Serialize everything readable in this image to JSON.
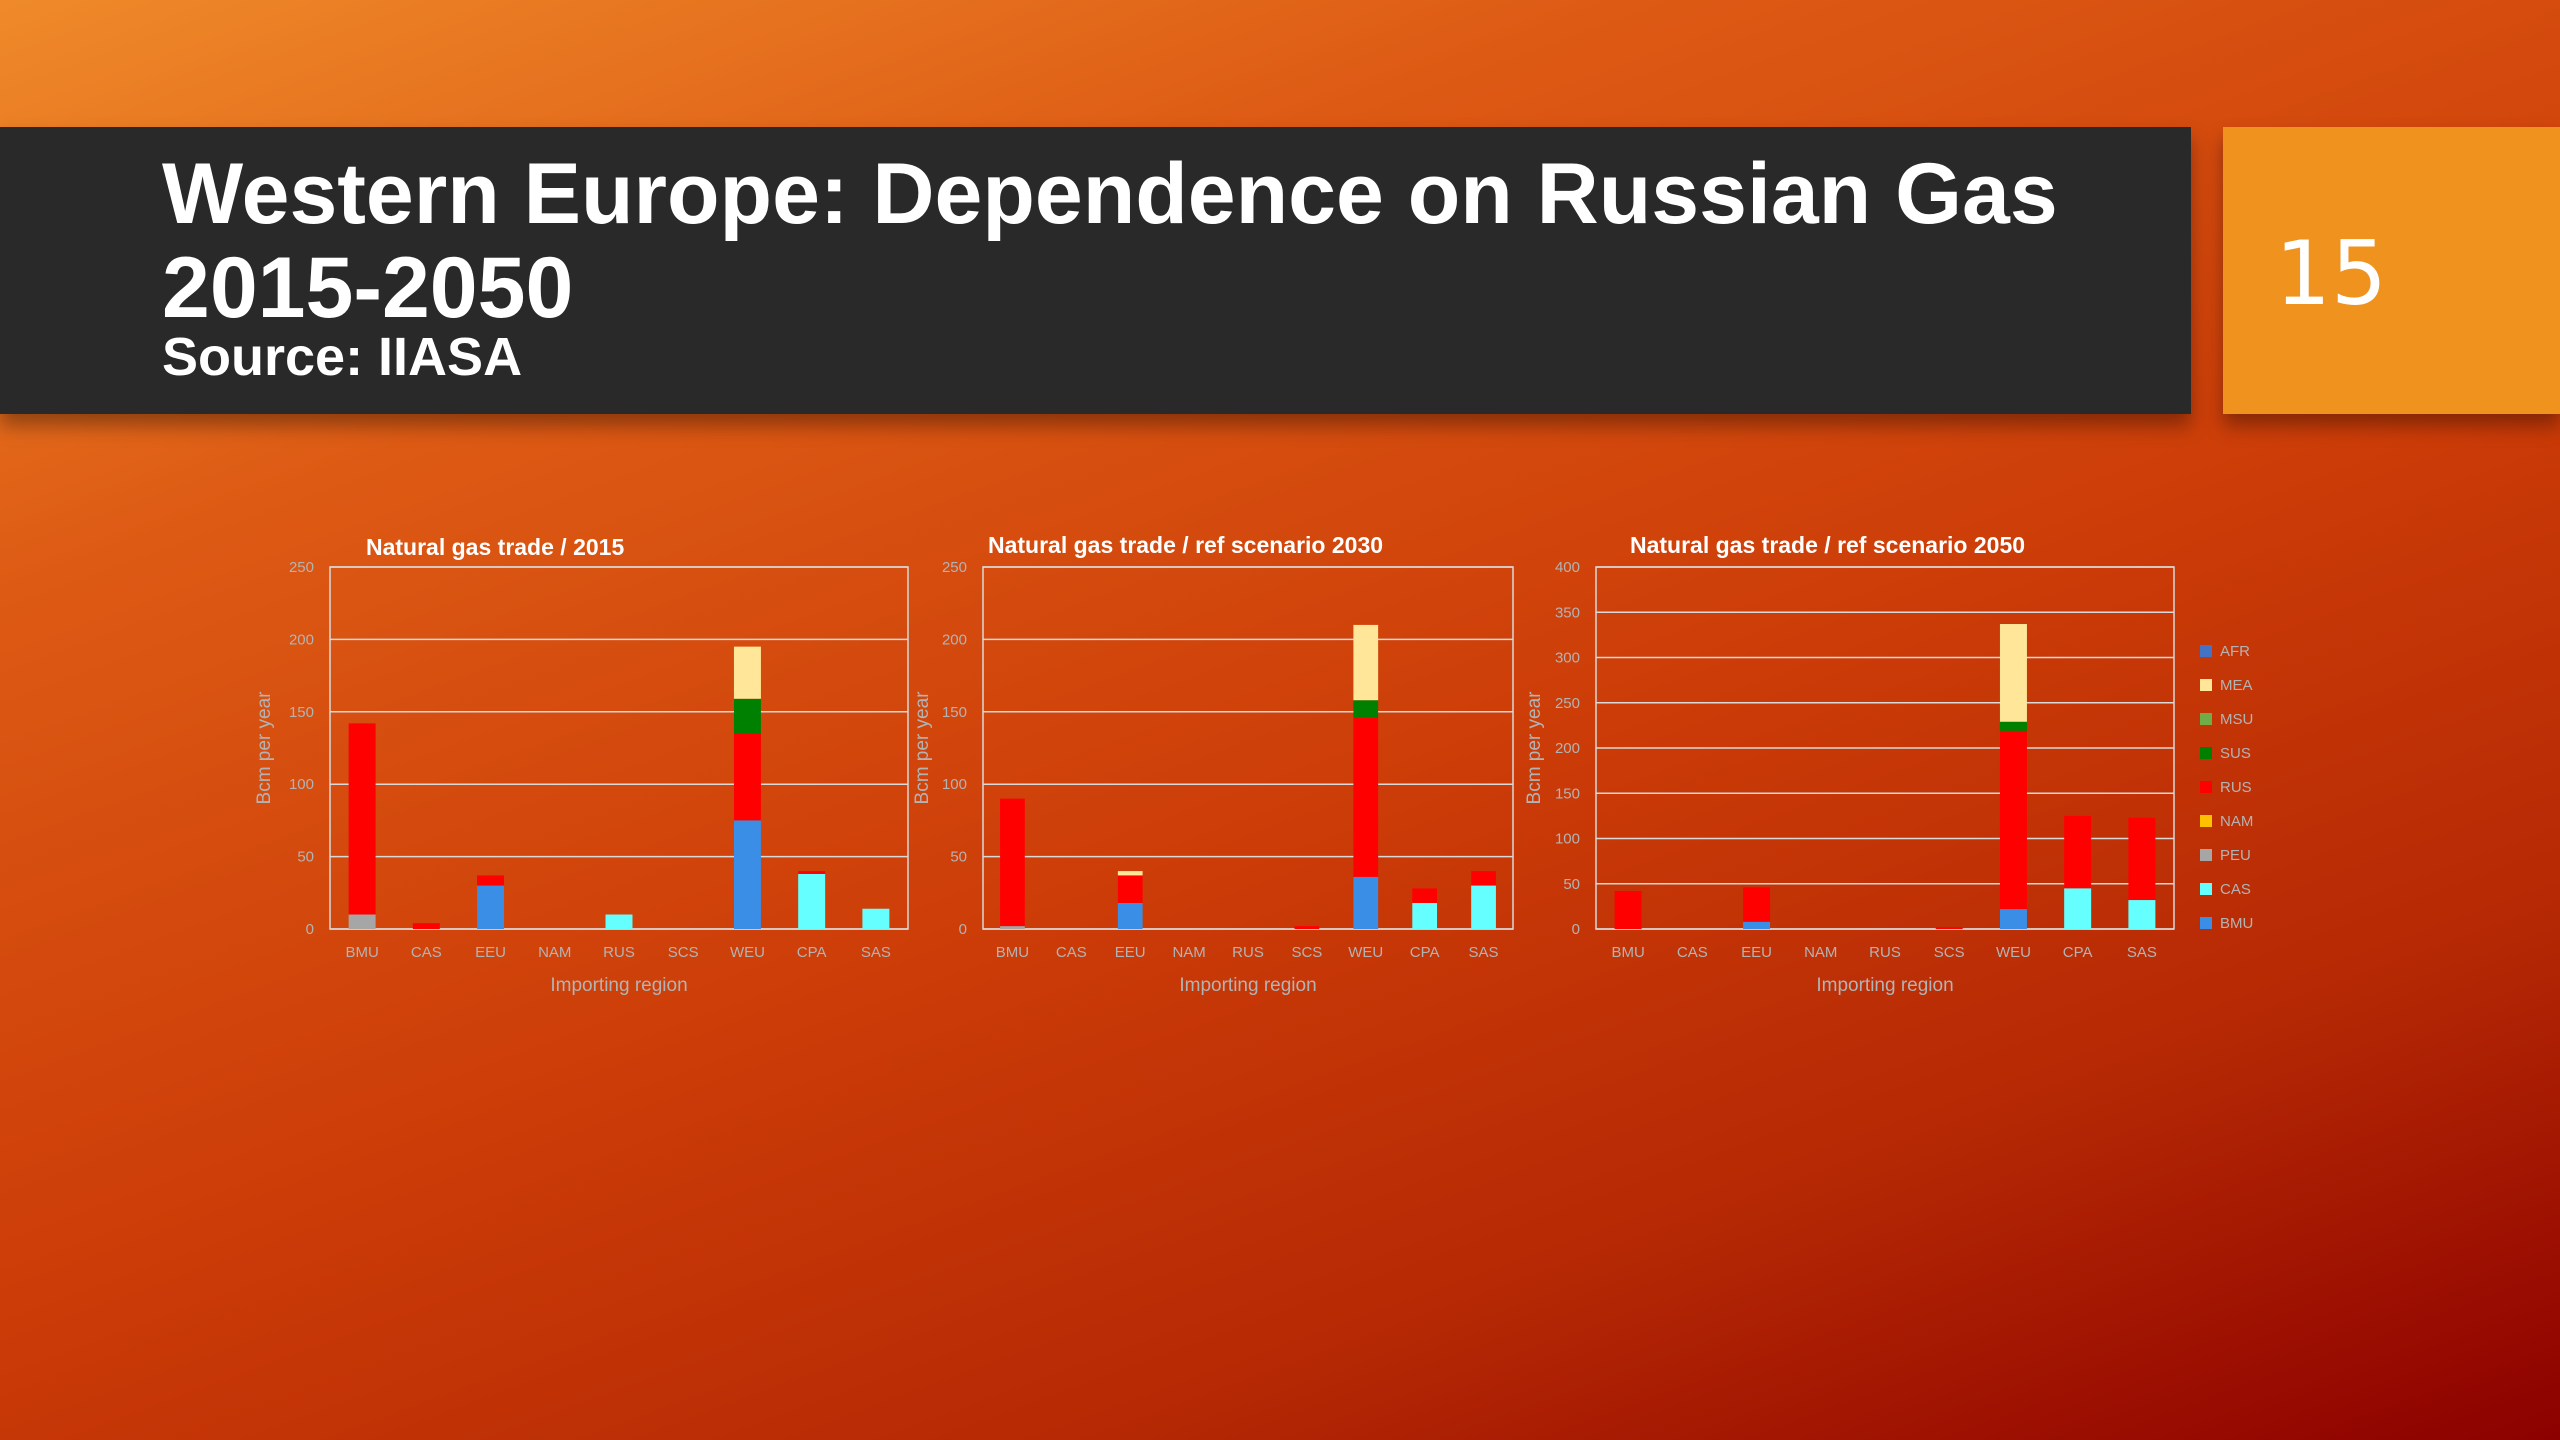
{
  "slide": {
    "title": "Western Europe: Dependence on Russian Gas 2015-2050",
    "subtitle": "Source: IIASA",
    "number": "15"
  },
  "legend": [
    {
      "name": "AFR",
      "color": "#4472c4"
    },
    {
      "name": "MEA",
      "color": "#ffe699"
    },
    {
      "name": "MSU",
      "color": "#70ad47"
    },
    {
      "name": "SUS",
      "color": "#008000"
    },
    {
      "name": "RUS",
      "color": "#ff0000"
    },
    {
      "name": "NAM",
      "color": "#ffc000"
    },
    {
      "name": "PEU",
      "color": "#a6a6a6"
    },
    {
      "name": "CAS",
      "color": "#66ffff"
    },
    {
      "name": "BMU",
      "color": "#3a8ee6"
    }
  ],
  "chart_data": [
    {
      "type": "bar",
      "stacked": true,
      "title": "Natural gas trade / 2015",
      "xlabel": "Importing region",
      "ylabel": "Bcm per year",
      "ylim": [
        0,
        250
      ],
      "yticks": [
        0,
        50,
        100,
        150,
        200,
        250
      ],
      "grid": true,
      "categories": [
        "BMU",
        "CAS",
        "EEU",
        "NAM",
        "RUS",
        "SCS",
        "WEU",
        "CPA",
        "SAS"
      ],
      "series": [
        {
          "name": "BMU",
          "color": "#3a8ee6",
          "values": [
            0,
            0,
            30,
            0,
            0,
            0,
            75,
            0,
            0
          ]
        },
        {
          "name": "CAS",
          "color": "#66ffff",
          "values": [
            0,
            0,
            0,
            0,
            10,
            0,
            0,
            38,
            14
          ]
        },
        {
          "name": "PEU",
          "color": "#a6a6a6",
          "values": [
            10,
            0,
            0,
            0,
            0,
            0,
            0,
            0,
            0
          ]
        },
        {
          "name": "NAM",
          "color": "#ffc000",
          "values": [
            0,
            0,
            0,
            0,
            0,
            0,
            0,
            0,
            0
          ]
        },
        {
          "name": "RUS",
          "color": "#ff0000",
          "values": [
            132,
            4,
            7,
            0,
            0,
            0,
            60,
            2,
            0
          ]
        },
        {
          "name": "SUS",
          "color": "#008000",
          "values": [
            0,
            0,
            0,
            0,
            0,
            0,
            24,
            0,
            0
          ]
        },
        {
          "name": "MSU",
          "color": "#70ad47",
          "values": [
            0,
            0,
            0,
            0,
            0,
            0,
            0,
            0,
            0
          ]
        },
        {
          "name": "MEA",
          "color": "#ffe699",
          "values": [
            0,
            0,
            0,
            0,
            0,
            0,
            36,
            0,
            0
          ]
        },
        {
          "name": "AFR",
          "color": "#4472c4",
          "values": [
            0,
            0,
            0,
            0,
            0,
            0,
            0,
            0,
            0
          ]
        }
      ]
    },
    {
      "type": "bar",
      "stacked": true,
      "title": "Natural gas trade / ref scenario 2030",
      "xlabel": "Importing region",
      "ylabel": "Bcm per year",
      "ylim": [
        0,
        250
      ],
      "yticks": [
        0,
        50,
        100,
        150,
        200,
        250
      ],
      "grid": true,
      "categories": [
        "BMU",
        "CAS",
        "EEU",
        "NAM",
        "RUS",
        "SCS",
        "WEU",
        "CPA",
        "SAS"
      ],
      "series": [
        {
          "name": "BMU",
          "color": "#3a8ee6",
          "values": [
            0,
            0,
            18,
            0,
            0,
            0,
            36,
            0,
            0
          ]
        },
        {
          "name": "CAS",
          "color": "#66ffff",
          "values": [
            0,
            0,
            0,
            0,
            0,
            0,
            0,
            18,
            30
          ]
        },
        {
          "name": "PEU",
          "color": "#a6a6a6",
          "values": [
            2,
            0,
            0,
            0,
            0,
            0,
            0,
            0,
            0
          ]
        },
        {
          "name": "NAM",
          "color": "#ffc000",
          "values": [
            0,
            0,
            0,
            0,
            0,
            0,
            0,
            0,
            0
          ]
        },
        {
          "name": "RUS",
          "color": "#ff0000",
          "values": [
            88,
            0,
            19,
            0,
            0,
            2,
            110,
            10,
            10
          ]
        },
        {
          "name": "SUS",
          "color": "#008000",
          "values": [
            0,
            0,
            0,
            0,
            0,
            0,
            12,
            0,
            0
          ]
        },
        {
          "name": "MSU",
          "color": "#70ad47",
          "values": [
            0,
            0,
            0,
            0,
            0,
            0,
            0,
            0,
            0
          ]
        },
        {
          "name": "MEA",
          "color": "#ffe699",
          "values": [
            0,
            0,
            3,
            0,
            0,
            0,
            52,
            0,
            0
          ]
        },
        {
          "name": "AFR",
          "color": "#4472c4",
          "values": [
            0,
            0,
            0,
            0,
            0,
            0,
            0,
            0,
            0
          ]
        }
      ]
    },
    {
      "type": "bar",
      "stacked": true,
      "title": "Natural gas trade / ref scenario 2050",
      "xlabel": "Importing region",
      "ylabel": "Bcm per year",
      "ylim": [
        0,
        400
      ],
      "yticks": [
        0,
        50,
        100,
        150,
        200,
        250,
        300,
        350,
        400
      ],
      "grid": true,
      "categories": [
        "BMU",
        "CAS",
        "EEU",
        "NAM",
        "RUS",
        "SCS",
        "WEU",
        "CPA",
        "SAS"
      ],
      "series": [
        {
          "name": "BMU",
          "color": "#3a8ee6",
          "values": [
            0,
            0,
            8,
            0,
            0,
            0,
            22,
            0,
            0
          ]
        },
        {
          "name": "CAS",
          "color": "#66ffff",
          "values": [
            0,
            0,
            0,
            0,
            0,
            0,
            0,
            45,
            32
          ]
        },
        {
          "name": "PEU",
          "color": "#a6a6a6",
          "values": [
            0,
            0,
            0,
            0,
            0,
            0,
            0,
            0,
            0
          ]
        },
        {
          "name": "NAM",
          "color": "#ffc000",
          "values": [
            0,
            0,
            0,
            0,
            0,
            0,
            0,
            0,
            0
          ]
        },
        {
          "name": "RUS",
          "color": "#ff0000",
          "values": [
            42,
            0,
            38,
            0,
            0,
            2,
            197,
            80,
            91
          ]
        },
        {
          "name": "SUS",
          "color": "#008000",
          "values": [
            0,
            0,
            0,
            0,
            0,
            0,
            10,
            0,
            0
          ]
        },
        {
          "name": "MSU",
          "color": "#70ad47",
          "values": [
            0,
            0,
            0,
            0,
            0,
            0,
            0,
            0,
            0
          ]
        },
        {
          "name": "MEA",
          "color": "#ffe699",
          "values": [
            0,
            0,
            0,
            0,
            0,
            0,
            108,
            0,
            0
          ]
        },
        {
          "name": "AFR",
          "color": "#4472c4",
          "values": [
            0,
            0,
            0,
            0,
            0,
            0,
            0,
            0,
            0
          ]
        }
      ]
    }
  ]
}
